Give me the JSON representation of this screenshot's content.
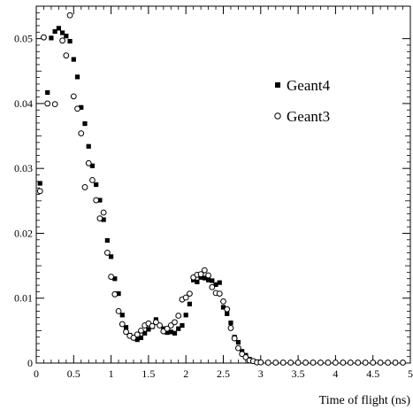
{
  "chart_data": {
    "type": "scatter",
    "xlabel": "Time of flight (ns)",
    "ylabel": "",
    "xlim": [
      0,
      5
    ],
    "ylim": [
      0,
      0.055
    ],
    "xticks": [
      "0",
      "0.5",
      "1",
      "1.5",
      "2",
      "2.5",
      "3",
      "3.5",
      "4",
      "4.5",
      "5"
    ],
    "yticks": [
      "0",
      "0.01",
      "0.02",
      "0.03",
      "0.04",
      "0.05"
    ],
    "legend_position": "top-right",
    "series": [
      {
        "name": "Geant4",
        "marker": "filled-square",
        "color": "#000000",
        "points": [
          [
            0.05,
            0.0277
          ],
          [
            0.15,
            0.0417
          ],
          [
            0.2,
            0.0501
          ],
          [
            0.25,
            0.0511
          ],
          [
            0.3,
            0.0516
          ],
          [
            0.35,
            0.0509
          ],
          [
            0.4,
            0.0504
          ],
          [
            0.45,
            0.0496
          ],
          [
            0.5,
            0.0468
          ],
          [
            0.55,
            0.0441
          ],
          [
            0.6,
            0.0394
          ],
          [
            0.65,
            0.0369
          ],
          [
            0.7,
            0.0334
          ],
          [
            0.75,
            0.0304
          ],
          [
            0.8,
            0.0275
          ],
          [
            0.85,
            0.0251
          ],
          [
            0.9,
            0.0221
          ],
          [
            0.95,
            0.0189
          ],
          [
            1.0,
            0.0164
          ],
          [
            1.05,
            0.013
          ],
          [
            1.1,
            0.0107
          ],
          [
            1.15,
            0.0074
          ],
          [
            1.2,
            0.0055
          ],
          [
            1.25,
            0.0043
          ],
          [
            1.3,
            0.0039
          ],
          [
            1.35,
            0.0036
          ],
          [
            1.4,
            0.0039
          ],
          [
            1.45,
            0.0046
          ],
          [
            1.5,
            0.0052
          ],
          [
            1.55,
            0.0056
          ],
          [
            1.6,
            0.0067
          ],
          [
            1.65,
            0.0058
          ],
          [
            1.7,
            0.0053
          ],
          [
            1.75,
            0.0047
          ],
          [
            1.8,
            0.0048
          ],
          [
            1.85,
            0.0046
          ],
          [
            1.9,
            0.0053
          ],
          [
            1.95,
            0.0058
          ],
          [
            2.0,
            0.0074
          ],
          [
            2.05,
            0.0091
          ],
          [
            2.1,
            0.0128
          ],
          [
            2.15,
            0.0125
          ],
          [
            2.2,
            0.0132
          ],
          [
            2.25,
            0.0131
          ],
          [
            2.3,
            0.0128
          ],
          [
            2.35,
            0.0127
          ],
          [
            2.4,
            0.0121
          ],
          [
            2.45,
            0.0124
          ],
          [
            2.5,
            0.0086
          ],
          [
            2.55,
            0.0076
          ],
          [
            2.6,
            0.0062
          ],
          [
            2.65,
            0.004
          ],
          [
            2.7,
            0.0032
          ],
          [
            2.75,
            0.0018
          ],
          [
            2.8,
            0.0012
          ],
          [
            2.85,
            0.0006
          ],
          [
            2.9,
            0.0003
          ],
          [
            2.95,
            0.0002
          ],
          [
            3.0,
            0.0001
          ],
          [
            3.1,
            5e-05
          ],
          [
            3.2,
            3e-05
          ],
          [
            3.3,
            2e-05
          ],
          [
            3.4,
            1e-05
          ],
          [
            3.5,
            0.0
          ],
          [
            3.6,
            0.0
          ],
          [
            3.7,
            0.0
          ],
          [
            3.8,
            0.0
          ],
          [
            3.9,
            0.0
          ],
          [
            4.0,
            0.0
          ],
          [
            4.1,
            0.0
          ],
          [
            4.2,
            0.0
          ],
          [
            4.3,
            0.0
          ],
          [
            4.4,
            0.0
          ],
          [
            4.5,
            0.0
          ],
          [
            4.6,
            0.0
          ],
          [
            4.7,
            0.0
          ],
          [
            4.8,
            0.0
          ],
          [
            4.9,
            0.0
          ]
        ]
      },
      {
        "name": "Geant3",
        "marker": "open-circle",
        "color": "#000000",
        "points": [
          [
            0.05,
            0.0265
          ],
          [
            0.1,
            0.0502
          ],
          [
            0.15,
            0.04
          ],
          [
            0.25,
            0.0399
          ],
          [
            0.35,
            0.0497
          ],
          [
            0.4,
            0.0474
          ],
          [
            0.45,
            0.0536
          ],
          [
            0.5,
            0.0411
          ],
          [
            0.55,
            0.0392
          ],
          [
            0.6,
            0.0354
          ],
          [
            0.65,
            0.0271
          ],
          [
            0.7,
            0.0308
          ],
          [
            0.75,
            0.0282
          ],
          [
            0.8,
            0.0251
          ],
          [
            0.85,
            0.0223
          ],
          [
            0.9,
            0.0232
          ],
          [
            0.95,
            0.017
          ],
          [
            1.0,
            0.0133
          ],
          [
            1.05,
            0.0106
          ],
          [
            1.1,
            0.008
          ],
          [
            1.15,
            0.006
          ],
          [
            1.2,
            0.0048
          ],
          [
            1.25,
            0.0042
          ],
          [
            1.3,
            0.0039
          ],
          [
            1.35,
            0.0044
          ],
          [
            1.4,
            0.005
          ],
          [
            1.45,
            0.0058
          ],
          [
            1.5,
            0.0061
          ],
          [
            1.55,
            0.0057
          ],
          [
            1.6,
            0.0063
          ],
          [
            1.65,
            0.0058
          ],
          [
            1.7,
            0.0049
          ],
          [
            1.75,
            0.0053
          ],
          [
            1.8,
            0.0058
          ],
          [
            1.85,
            0.0063
          ],
          [
            1.9,
            0.0073
          ],
          [
            1.95,
            0.0098
          ],
          [
            2.0,
            0.0101
          ],
          [
            2.05,
            0.0107
          ],
          [
            2.1,
            0.0132
          ],
          [
            2.15,
            0.0136
          ],
          [
            2.2,
            0.0137
          ],
          [
            2.25,
            0.0143
          ],
          [
            2.3,
            0.0135
          ],
          [
            2.35,
            0.0117
          ],
          [
            2.4,
            0.0108
          ],
          [
            2.45,
            0.0107
          ],
          [
            2.5,
            0.0095
          ],
          [
            2.55,
            0.0083
          ],
          [
            2.6,
            0.0054
          ],
          [
            2.65,
            0.0038
          ],
          [
            2.7,
            0.0023
          ],
          [
            2.75,
            0.0014
          ],
          [
            2.8,
            0.0009
          ],
          [
            2.85,
            0.0004
          ],
          [
            2.9,
            0.0003
          ],
          [
            2.95,
            0.0001
          ],
          [
            3.0,
            0.0001
          ],
          [
            3.1,
            4e-05
          ],
          [
            3.2,
            3e-05
          ],
          [
            3.3,
            2e-05
          ],
          [
            3.4,
            1e-05
          ],
          [
            3.5,
            0.0
          ],
          [
            3.6,
            0.0
          ],
          [
            3.7,
            0.0
          ],
          [
            3.8,
            0.0
          ],
          [
            3.9,
            0.0
          ],
          [
            4.0,
            0.0
          ],
          [
            4.1,
            0.0
          ],
          [
            4.2,
            0.0
          ],
          [
            4.3,
            0.0
          ],
          [
            4.4,
            0.0
          ],
          [
            4.5,
            0.0
          ],
          [
            4.6,
            0.0
          ],
          [
            4.7,
            0.0
          ],
          [
            4.8,
            0.0
          ],
          [
            4.9,
            0.0
          ]
        ]
      }
    ]
  }
}
